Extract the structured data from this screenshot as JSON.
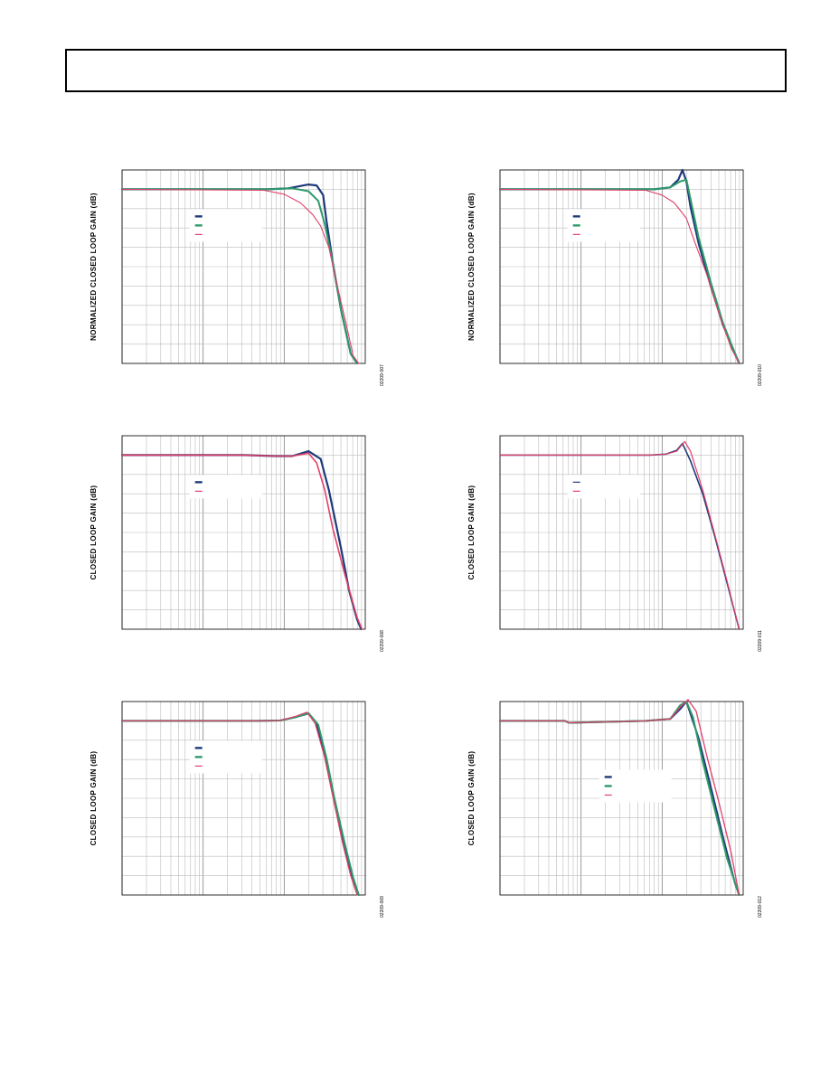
{
  "page": {
    "header": ""
  },
  "chart_data": [
    {
      "type": "line",
      "ylabel": "NORMALIZED CLOSED LOOP GAIN (dB)",
      "figure_code": "02209-007",
      "x_decades": 3,
      "ylim": [
        -9,
        1
      ],
      "grid": true,
      "legend": {
        "position": "upper-left-center",
        "labels": [
          "",
          "",
          ""
        ]
      },
      "series": [
        {
          "name": "",
          "color": "#1f3a7a",
          "width": 2.2,
          "x": [
            0,
            1.8,
            2.05,
            2.3,
            2.4,
            2.48,
            2.52,
            2.6,
            2.7,
            2.82,
            2.9
          ],
          "y": [
            0,
            0,
            0.05,
            0.25,
            0.2,
            -0.3,
            -1.6,
            -3.8,
            -6.2,
            -8.5,
            -9
          ]
        },
        {
          "name": "",
          "color": "#2e9a6a",
          "width": 2.0,
          "x": [
            0,
            1.8,
            2.1,
            2.3,
            2.42,
            2.5,
            2.6,
            2.7,
            2.82,
            2.9
          ],
          "y": [
            0,
            0,
            0.05,
            -0.1,
            -0.6,
            -1.8,
            -3.8,
            -6.2,
            -8.5,
            -9
          ]
        },
        {
          "name": "",
          "color": "#e0406a",
          "width": 1.1,
          "x": [
            0,
            1.75,
            2.0,
            2.2,
            2.35,
            2.45,
            2.55,
            2.65,
            2.75,
            2.85,
            2.92
          ],
          "y": [
            0,
            -0.05,
            -0.25,
            -0.7,
            -1.3,
            -1.9,
            -3.0,
            -4.9,
            -6.7,
            -8.6,
            -9
          ]
        }
      ]
    },
    {
      "type": "line",
      "ylabel": "NORMALIZED CLOSED LOOP GAIN (dB)",
      "figure_code": "02209-010",
      "x_decades": 3,
      "ylim": [
        -9,
        1
      ],
      "grid": true,
      "legend": {
        "position": "upper-right-center",
        "labels": [
          "",
          "",
          ""
        ]
      },
      "series": [
        {
          "name": "",
          "color": "#1f3a7a",
          "width": 2.2,
          "x": [
            0,
            1.9,
            2.1,
            2.2,
            2.25,
            2.3,
            2.35,
            2.45,
            2.6,
            2.75,
            2.9,
            2.95
          ],
          "y": [
            0,
            0,
            0.1,
            0.5,
            1.0,
            0.4,
            -0.9,
            -2.8,
            -5.0,
            -7.0,
            -8.5,
            -9
          ]
        },
        {
          "name": "",
          "color": "#2e9a6a",
          "width": 2.0,
          "x": [
            0,
            1.9,
            2.1,
            2.22,
            2.3,
            2.35,
            2.45,
            2.6,
            2.75,
            2.9,
            2.95
          ],
          "y": [
            0,
            0,
            0.1,
            0.4,
            0.5,
            -0.5,
            -2.5,
            -4.8,
            -6.9,
            -8.5,
            -9
          ]
        },
        {
          "name": "",
          "color": "#e0406a",
          "width": 1.1,
          "x": [
            0,
            1.8,
            2.0,
            2.15,
            2.3,
            2.4,
            2.55,
            2.7,
            2.85,
            2.95
          ],
          "y": [
            0,
            -0.05,
            -0.3,
            -0.7,
            -1.5,
            -2.7,
            -4.4,
            -6.4,
            -8.2,
            -9
          ]
        }
      ]
    },
    {
      "type": "line",
      "ylabel": "CLOSED LOOP GAIN (dB)",
      "figure_code": "02209-008",
      "x_decades": 3,
      "ylim": [
        -9,
        1
      ],
      "grid": true,
      "legend": {
        "position": "upper-left-center",
        "labels": [
          "",
          ""
        ]
      },
      "series": [
        {
          "name": "",
          "color": "#1f3a7a",
          "width": 2.2,
          "x": [
            0,
            1.5,
            1.9,
            2.1,
            2.3,
            2.45,
            2.55,
            2.7,
            2.8,
            2.9,
            2.95
          ],
          "y": [
            0,
            0,
            -0.05,
            -0.05,
            0.2,
            -0.2,
            -1.8,
            -4.8,
            -7.0,
            -8.5,
            -9
          ]
        },
        {
          "name": "",
          "color": "#e0406a",
          "width": 1.6,
          "x": [
            0,
            1.5,
            1.9,
            2.1,
            2.3,
            2.4,
            2.5,
            2.6,
            2.75,
            2.9,
            2.96
          ],
          "y": [
            0,
            0,
            -0.05,
            -0.05,
            0.1,
            -0.4,
            -1.8,
            -3.8,
            -6.2,
            -8.4,
            -9
          ]
        }
      ]
    },
    {
      "type": "line",
      "ylabel": "CLOSED LOOP GAIN (dB)",
      "figure_code": "02209-011",
      "x_decades": 3,
      "ylim": [
        -9,
        1
      ],
      "grid": true,
      "legend": {
        "position": "upper-right-center",
        "labels": [
          "",
          ""
        ]
      },
      "series": [
        {
          "name": "",
          "color": "#1f3a7a",
          "width": 1.6,
          "x": [
            0,
            1.5,
            1.85,
            2.05,
            2.18,
            2.25,
            2.35,
            2.5,
            2.65,
            2.8,
            2.95
          ],
          "y": [
            0,
            0,
            0,
            0.05,
            0.25,
            0.6,
            -0.3,
            -2.0,
            -4.2,
            -6.6,
            -9
          ]
        },
        {
          "name": "",
          "color": "#e0406a",
          "width": 1.2,
          "x": [
            0,
            1.5,
            1.85,
            2.05,
            2.18,
            2.28,
            2.35,
            2.5,
            2.65,
            2.8,
            2.95
          ],
          "y": [
            0,
            0,
            0,
            0.05,
            0.2,
            0.7,
            0.2,
            -1.8,
            -4.1,
            -6.5,
            -9
          ]
        }
      ]
    },
    {
      "type": "line",
      "ylabel": "CLOSED LOOP GAIN (dB)",
      "figure_code": "02209-009",
      "x_decades": 3,
      "ylim": [
        -9,
        1
      ],
      "grid": true,
      "legend": {
        "position": "upper-left-center",
        "labels": [
          "",
          "",
          ""
        ]
      },
      "series": [
        {
          "name": "",
          "color": "#1f3a7a",
          "width": 2.0,
          "x": [
            0,
            1.65,
            1.95,
            2.15,
            2.3,
            2.4,
            2.5,
            2.6,
            2.72,
            2.82,
            2.92
          ],
          "y": [
            0,
            0,
            0.02,
            0.2,
            0.38,
            -0.2,
            -1.8,
            -3.8,
            -6.0,
            -7.8,
            -9
          ]
        },
        {
          "name": "",
          "color": "#2e9a6a",
          "width": 2.0,
          "x": [
            0,
            1.65,
            1.95,
            2.15,
            2.3,
            2.42,
            2.52,
            2.62,
            2.75,
            2.85,
            2.92
          ],
          "y": [
            0,
            0,
            0.02,
            0.2,
            0.4,
            -0.2,
            -1.9,
            -4.0,
            -6.4,
            -8.1,
            -9
          ]
        },
        {
          "name": "",
          "color": "#e0406a",
          "width": 1.3,
          "x": [
            0,
            1.65,
            1.95,
            2.15,
            2.28,
            2.38,
            2.5,
            2.6,
            2.72,
            2.82,
            2.9
          ],
          "y": [
            0,
            0,
            0.02,
            0.25,
            0.45,
            -0.1,
            -1.9,
            -3.9,
            -6.3,
            -8.0,
            -9
          ]
        }
      ]
    },
    {
      "type": "line",
      "ylabel": "CLOSED LOOP GAIN (dB)",
      "figure_code": "02209-012",
      "x_decades": 3,
      "ylim": [
        -9,
        1
      ],
      "grid": true,
      "legend": {
        "position": "center-left",
        "labels": [
          "",
          "",
          ""
        ]
      },
      "series": [
        {
          "name": "",
          "color": "#1f3a7a",
          "width": 2.0,
          "x": [
            0,
            0.8,
            0.85,
            1.8,
            2.1,
            2.22,
            2.3,
            2.45,
            2.6,
            2.75,
            2.9,
            2.95
          ],
          "y": [
            0,
            0,
            -0.1,
            0,
            0.1,
            0.6,
            1.0,
            -0.9,
            -3.4,
            -6.0,
            -8.4,
            -9
          ]
        },
        {
          "name": "",
          "color": "#2e9a6a",
          "width": 2.0,
          "x": [
            0,
            0.8,
            0.85,
            1.8,
            2.1,
            2.22,
            2.3,
            2.38,
            2.5,
            2.65,
            2.8,
            2.95
          ],
          "y": [
            0,
            0,
            -0.1,
            0,
            0.1,
            0.8,
            1.0,
            0.2,
            -2.1,
            -4.6,
            -7.1,
            -9
          ]
        },
        {
          "name": "",
          "color": "#e0406a",
          "width": 1.3,
          "x": [
            0,
            0.8,
            0.85,
            1.8,
            2.1,
            2.22,
            2.32,
            2.42,
            2.55,
            2.7,
            2.85,
            2.95
          ],
          "y": [
            0,
            0,
            -0.1,
            0,
            0.1,
            0.7,
            1.1,
            0.5,
            -1.8,
            -4.2,
            -6.8,
            -9
          ]
        }
      ]
    }
  ]
}
